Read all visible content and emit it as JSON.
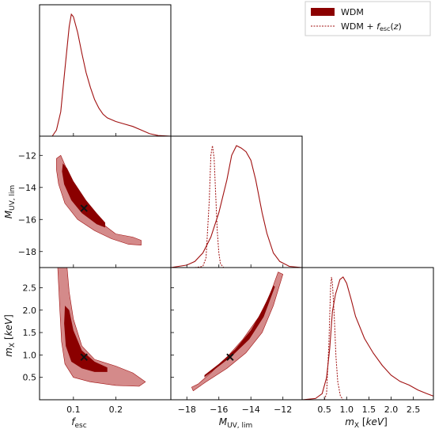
{
  "colors": {
    "dark": "#8b0000",
    "light": "#d48a8a",
    "line": "#a01010"
  },
  "legend": [
    {
      "label": "WDM",
      "style": "filled"
    },
    {
      "label": "WDM + f_esc(z)",
      "style": "dashed"
    }
  ],
  "chart_data": {
    "type": "corner",
    "parameters": [
      {
        "key": "fesc",
        "label": "f_esc",
        "range": [
          0.02,
          0.33
        ],
        "ticks": [
          "0.1",
          "0.2"
        ],
        "tick_values": [
          0.1,
          0.2
        ]
      },
      {
        "key": "muv",
        "label": "M_UV,lim",
        "range": [
          -19.0,
          -10.8
        ],
        "ticks": [
          "−18",
          "−16",
          "−14",
          "−12"
        ],
        "tick_values": [
          -18,
          -16,
          -14,
          -12
        ]
      },
      {
        "key": "mx",
        "label": "m_X [keV]",
        "range": [
          0.0,
          2.95
        ],
        "ticks": [
          "0.5",
          "1.0",
          "1.5",
          "2.0",
          "2.5"
        ],
        "tick_values": [
          0.5,
          1.0,
          1.5,
          2.0,
          2.5
        ]
      }
    ],
    "best_fit": {
      "fesc": 0.125,
      "muv": -15.3,
      "mx": 0.95
    },
    "marginals": {
      "fesc": {
        "WDM": [
          [
            0.05,
            0.0
          ],
          [
            0.06,
            0.05
          ],
          [
            0.07,
            0.2
          ],
          [
            0.08,
            0.55
          ],
          [
            0.09,
            0.9
          ],
          [
            0.095,
            1.0
          ],
          [
            0.1,
            0.98
          ],
          [
            0.11,
            0.85
          ],
          [
            0.12,
            0.68
          ],
          [
            0.13,
            0.52
          ],
          [
            0.14,
            0.4
          ],
          [
            0.15,
            0.3
          ],
          [
            0.16,
            0.23
          ],
          [
            0.17,
            0.18
          ],
          [
            0.18,
            0.15
          ],
          [
            0.2,
            0.12
          ],
          [
            0.22,
            0.1
          ],
          [
            0.24,
            0.08
          ],
          [
            0.26,
            0.05
          ],
          [
            0.28,
            0.02
          ],
          [
            0.3,
            0.005
          ],
          [
            0.33,
            0.0
          ]
        ]
      },
      "muv": {
        "WDM": [
          [
            -19.0,
            0.0
          ],
          [
            -18.0,
            0.02
          ],
          [
            -17.5,
            0.05
          ],
          [
            -17.0,
            0.12
          ],
          [
            -16.5,
            0.25
          ],
          [
            -16.0,
            0.45
          ],
          [
            -15.5,
            0.72
          ],
          [
            -15.2,
            0.92
          ],
          [
            -14.9,
            1.0
          ],
          [
            -14.6,
            0.98
          ],
          [
            -14.3,
            0.95
          ],
          [
            -14.0,
            0.88
          ],
          [
            -13.7,
            0.72
          ],
          [
            -13.3,
            0.45
          ],
          [
            -13.0,
            0.28
          ],
          [
            -12.6,
            0.12
          ],
          [
            -12.2,
            0.05
          ],
          [
            -11.6,
            0.01
          ],
          [
            -10.8,
            0.0
          ]
        ],
        "WDM + f_esc(z)": [
          [
            -17.5,
            0.0
          ],
          [
            -17.0,
            0.01
          ],
          [
            -16.8,
            0.08
          ],
          [
            -16.6,
            0.55
          ],
          [
            -16.5,
            0.92
          ],
          [
            -16.4,
            1.0
          ],
          [
            -16.3,
            0.9
          ],
          [
            -16.2,
            0.6
          ],
          [
            -16.1,
            0.3
          ],
          [
            -16.0,
            0.12
          ],
          [
            -15.9,
            0.03
          ],
          [
            -15.7,
            0.0
          ]
        ]
      },
      "mx": {
        "WDM": [
          [
            0.0,
            0.0
          ],
          [
            0.3,
            0.01
          ],
          [
            0.45,
            0.05
          ],
          [
            0.55,
            0.18
          ],
          [
            0.62,
            0.42
          ],
          [
            0.68,
            0.72
          ],
          [
            0.75,
            0.86
          ],
          [
            0.85,
            0.98
          ],
          [
            0.92,
            1.0
          ],
          [
            1.0,
            0.95
          ],
          [
            1.1,
            0.82
          ],
          [
            1.2,
            0.68
          ],
          [
            1.4,
            0.5
          ],
          [
            1.6,
            0.38
          ],
          [
            1.8,
            0.28
          ],
          [
            2.0,
            0.2
          ],
          [
            2.2,
            0.15
          ],
          [
            2.4,
            0.12
          ],
          [
            2.6,
            0.08
          ],
          [
            2.8,
            0.05
          ],
          [
            2.95,
            0.03
          ]
        ],
        "WDM + f_esc(z)": [
          [
            0.5,
            0.0
          ],
          [
            0.55,
            0.05
          ],
          [
            0.6,
            0.45
          ],
          [
            0.64,
            0.92
          ],
          [
            0.66,
            1.0
          ],
          [
            0.68,
            0.95
          ],
          [
            0.72,
            0.7
          ],
          [
            0.76,
            0.35
          ],
          [
            0.8,
            0.15
          ],
          [
            0.86,
            0.03
          ],
          [
            0.92,
            0.0
          ]
        ]
      }
    },
    "contours": {
      "muv_vs_fesc": {
        "outer": [
          [
            0.06,
            -12.2
          ],
          [
            0.07,
            -12.0
          ],
          [
            0.085,
            -12.9
          ],
          [
            0.11,
            -14.2
          ],
          [
            0.14,
            -15.4
          ],
          [
            0.17,
            -16.3
          ],
          [
            0.2,
            -16.9
          ],
          [
            0.24,
            -17.1
          ],
          [
            0.26,
            -17.3
          ],
          [
            0.26,
            -17.6
          ],
          [
            0.23,
            -17.55
          ],
          [
            0.19,
            -17.2
          ],
          [
            0.15,
            -16.7
          ],
          [
            0.11,
            -16.0
          ],
          [
            0.08,
            -15.0
          ],
          [
            0.065,
            -13.8
          ],
          [
            0.06,
            -12.9
          ]
        ],
        "inner": [
          [
            0.075,
            -12.5
          ],
          [
            0.085,
            -12.8
          ],
          [
            0.1,
            -13.6
          ],
          [
            0.13,
            -14.8
          ],
          [
            0.155,
            -15.6
          ],
          [
            0.175,
            -16.2
          ],
          [
            0.175,
            -16.5
          ],
          [
            0.155,
            -16.3
          ],
          [
            0.12,
            -15.6
          ],
          [
            0.095,
            -14.8
          ],
          [
            0.078,
            -13.8
          ],
          [
            0.073,
            -13.0
          ]
        ]
      },
      "mx_vs_fesc": {
        "outer": [
          [
            0.063,
            2.95
          ],
          [
            0.085,
            2.95
          ],
          [
            0.09,
            2.4
          ],
          [
            0.1,
            1.8
          ],
          [
            0.12,
            1.2
          ],
          [
            0.15,
            0.9
          ],
          [
            0.2,
            0.75
          ],
          [
            0.24,
            0.6
          ],
          [
            0.27,
            0.4
          ],
          [
            0.255,
            0.3
          ],
          [
            0.2,
            0.32
          ],
          [
            0.14,
            0.4
          ],
          [
            0.1,
            0.5
          ],
          [
            0.08,
            0.8
          ],
          [
            0.072,
            1.3
          ],
          [
            0.068,
            2.0
          ]
        ],
        "inner": [
          [
            0.08,
            2.1
          ],
          [
            0.09,
            2.0
          ],
          [
            0.1,
            1.55
          ],
          [
            0.12,
            1.1
          ],
          [
            0.15,
            0.85
          ],
          [
            0.18,
            0.72
          ],
          [
            0.18,
            0.62
          ],
          [
            0.15,
            0.62
          ],
          [
            0.12,
            0.7
          ],
          [
            0.095,
            0.85
          ],
          [
            0.082,
            1.2
          ],
          [
            0.078,
            1.7
          ]
        ]
      },
      "mx_vs_muv": {
        "outer": [
          [
            -17.3,
            0.35
          ],
          [
            -16.5,
            0.6
          ],
          [
            -15.5,
            0.95
          ],
          [
            -14.5,
            1.35
          ],
          [
            -13.5,
            1.85
          ],
          [
            -12.8,
            2.35
          ],
          [
            -12.3,
            2.85
          ],
          [
            -12.0,
            2.8
          ],
          [
            -12.6,
            2.1
          ],
          [
            -13.3,
            1.5
          ],
          [
            -14.3,
            1.05
          ],
          [
            -15.5,
            0.7
          ],
          [
            -16.8,
            0.4
          ],
          [
            -17.6,
            0.2
          ],
          [
            -17.7,
            0.28
          ]
        ],
        "inner": [
          [
            -16.9,
            0.55
          ],
          [
            -16.0,
            0.8
          ],
          [
            -15.0,
            1.12
          ],
          [
            -14.0,
            1.55
          ],
          [
            -13.2,
            2.05
          ],
          [
            -12.6,
            2.55
          ],
          [
            -12.5,
            2.52
          ],
          [
            -13.2,
            1.85
          ],
          [
            -14.1,
            1.35
          ],
          [
            -15.2,
            0.97
          ],
          [
            -16.3,
            0.67
          ],
          [
            -16.9,
            0.5
          ]
        ]
      }
    }
  }
}
